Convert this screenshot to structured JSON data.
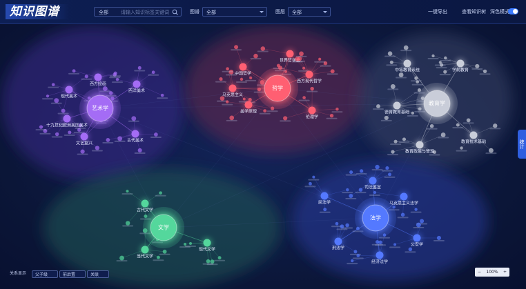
{
  "header": {
    "title": "知识图谱",
    "scope": "全部",
    "search_placeholder": "请输入知识标签关键词",
    "graph_label": "图谱",
    "graph_value": "全部",
    "layer_label": "图层",
    "layer_value": "全部",
    "export": "一键导出",
    "tree": "查看知识树",
    "dark_mode": "深色模式"
  },
  "side_tab": "统计",
  "legend": {
    "title": "关系显示",
    "items": [
      "父子级",
      "前后置",
      "关联"
    ]
  },
  "zoom": "100%",
  "clusters": [
    {
      "label": "艺术学",
      "nodes": [
        {
          "label": "现代美术"
        },
        {
          "label": "西方绘画"
        },
        {
          "label": "西洋美术"
        },
        {
          "label": "十九世纪欧洲美国美术"
        },
        {
          "label": "文艺复兴"
        },
        {
          "label": "古代美术"
        }
      ]
    },
    {
      "label": "哲学",
      "nodes": [
        {
          "label": "中国哲学"
        },
        {
          "label": "世界哲学史"
        },
        {
          "label": "马克思主义"
        },
        {
          "label": "美学原理"
        },
        {
          "label": "西方现代哲学"
        },
        {
          "label": "伦理学"
        }
      ]
    },
    {
      "label": "教育学",
      "nodes": [
        {
          "label": "中等教育系统"
        },
        {
          "label": "学前教育"
        },
        {
          "label": "德育教育基础"
        },
        {
          "label": "教育技术基础"
        },
        {
          "label": "教育政策与管理"
        }
      ]
    },
    {
      "label": "文学",
      "nodes": [
        {
          "label": "古代文学"
        },
        {
          "label": "现代文学"
        },
        {
          "label": "当代文学"
        }
      ]
    },
    {
      "label": "法学",
      "nodes": [
        {
          "label": "民法学"
        },
        {
          "label": "马克思主义法学"
        },
        {
          "label": "刑法学"
        },
        {
          "label": "经济法学"
        },
        {
          "label": "公安学"
        },
        {
          "label": "司法鉴定"
        }
      ]
    }
  ]
}
